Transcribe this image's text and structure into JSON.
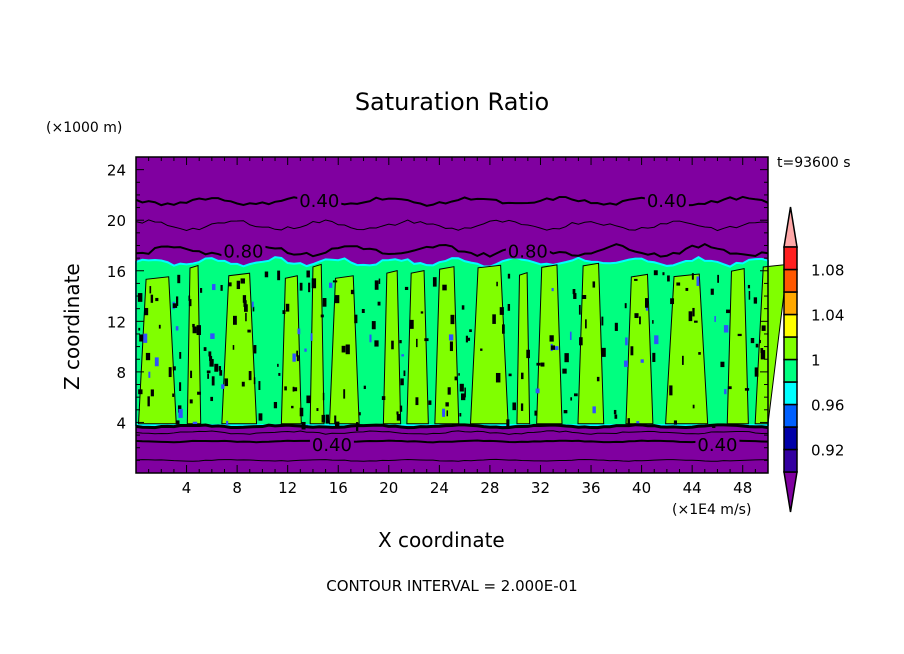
{
  "chart_data": {
    "type": "heatmap",
    "title": "Saturation Ratio",
    "xlabel": "X coordinate",
    "ylabel": "Z coordinate",
    "x_unit": "(×1E4 m/s)",
    "y_unit": "(×1000 m)",
    "time_label": "t=93600 s",
    "footer": "CONTOUR INTERVAL = 2.000E-01",
    "xlim": [
      0,
      50
    ],
    "ylim": [
      0,
      25
    ],
    "xticks": [
      4,
      8,
      12,
      16,
      20,
      24,
      28,
      32,
      36,
      40,
      44,
      48
    ],
    "yticks": [
      4,
      8,
      12,
      16,
      20,
      24
    ],
    "colorbar": {
      "levels": [
        0.9,
        0.92,
        0.94,
        0.96,
        0.98,
        1.0,
        1.02,
        1.04,
        1.06,
        1.08,
        1.1
      ],
      "tick_labels": [
        {
          "value": 0.92,
          "label": "0.92"
        },
        {
          "value": 0.96,
          "label": "0.96"
        },
        {
          "value": 1.0,
          "label": "1"
        },
        {
          "value": 1.04,
          "label": "1.04"
        },
        {
          "value": 1.08,
          "label": "1.08"
        }
      ],
      "colors": [
        "#3300a0",
        "#0000a8",
        "#0060ff",
        "#00ffff",
        "#00ff80",
        "#80ff00",
        "#ffff00",
        "#ffa800",
        "#ff5800",
        "#ff2020"
      ],
      "under_color": "#8000a0",
      "over_color": "#ffa8a8"
    },
    "regions": {
      "cloud_layer_z": [
        3.8,
        16.7
      ],
      "background_color": "#8000a0",
      "cloud_color": "#00ff80",
      "supersaturated_color": "#80ff00"
    },
    "contour_labels": [
      {
        "x": 14.5,
        "z": 21.6,
        "label": "0.40"
      },
      {
        "x": 42.0,
        "z": 21.6,
        "label": "0.40"
      },
      {
        "x": 8.5,
        "z": 17.6,
        "label": "0.80"
      },
      {
        "x": 31.0,
        "z": 17.6,
        "label": "0.80"
      },
      {
        "x": 15.5,
        "z": 2.3,
        "label": "0.40"
      },
      {
        "x": 46.0,
        "z": 2.3,
        "label": "0.40"
      }
    ]
  }
}
